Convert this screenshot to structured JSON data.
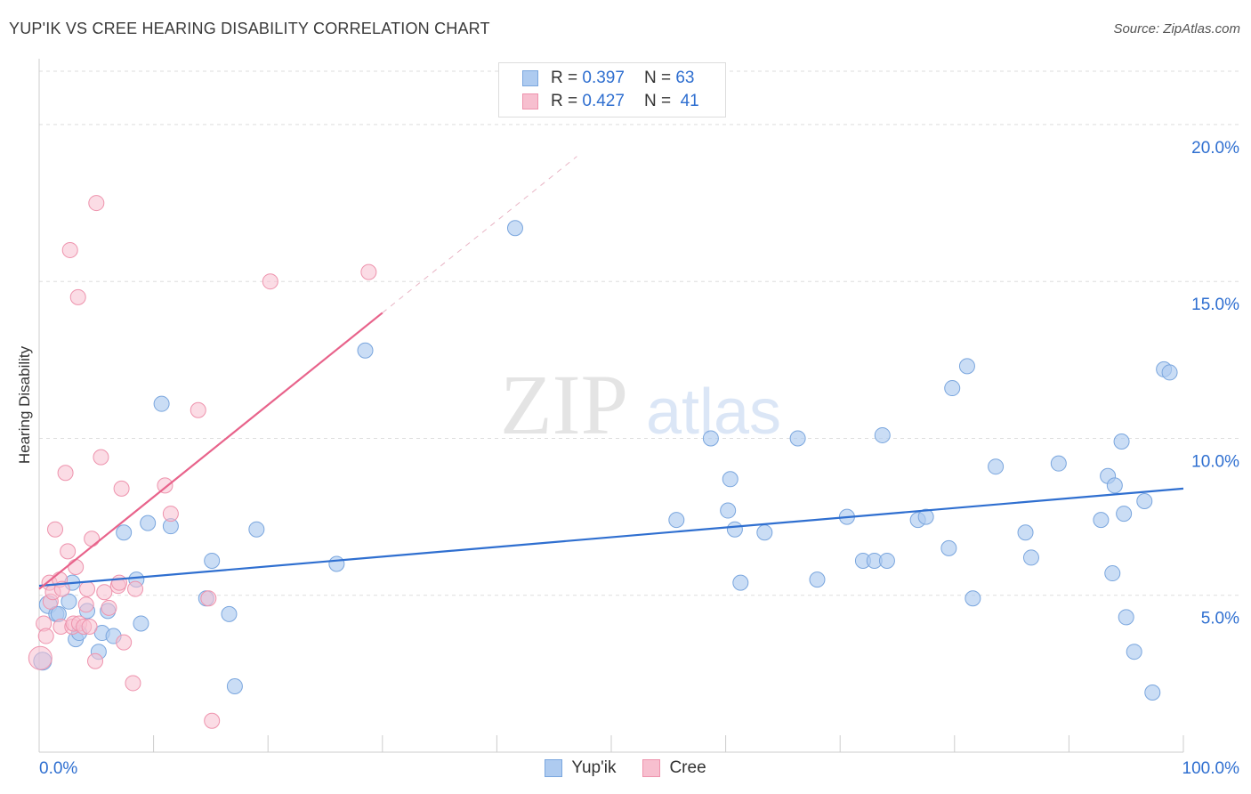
{
  "title": "YUP'IK VS CREE HEARING DISABILITY CORRELATION CHART",
  "source": "Source: ZipAtlas.com",
  "watermark": {
    "zip": "ZIP",
    "atlas": "atlas"
  },
  "legend": {
    "rows": [
      {
        "r_label": "R =",
        "r_value": "0.397",
        "n_label": "N =",
        "n_value": "63"
      },
      {
        "r_label": "R =",
        "r_value": "0.427",
        "n_label": "N =",
        "n_value": "41"
      }
    ]
  },
  "chart_data": {
    "type": "scatter",
    "title": "YUP'IK VS CREE HEARING DISABILITY CORRELATION CHART",
    "xlabel": "",
    "ylabel": "Hearing Disability",
    "xlim": [
      0,
      100
    ],
    "ylim": [
      0,
      20
    ],
    "x_tick_labels": [
      "0.0%",
      "100.0%"
    ],
    "y_ticks": [
      5,
      10,
      15,
      20
    ],
    "y_tick_labels": [
      "5.0%",
      "10.0%",
      "15.0%",
      "20.0%"
    ],
    "grid": true,
    "legend_position": "top-center",
    "colors": {
      "yupik_fill": "#aecbf0",
      "yupik_stroke": "#7aa6de",
      "yupik_line": "#2f6fd0",
      "cree_fill": "#f7bfcf",
      "cree_stroke": "#ee93ad",
      "cree_line": "#e8638b",
      "axis_text": "#2f6fd0"
    },
    "series": [
      {
        "name": "Yup'ik",
        "r": 0.397,
        "n": 63,
        "trend": [
          [
            0,
            5.3
          ],
          [
            100,
            8.4
          ]
        ],
        "points": [
          [
            0.3,
            2.9
          ],
          [
            0.8,
            4.7
          ],
          [
            1.5,
            4.4
          ],
          [
            1.7,
            4.4
          ],
          [
            2.6,
            4.8
          ],
          [
            2.9,
            5.4
          ],
          [
            3.2,
            3.6
          ],
          [
            3.5,
            3.8
          ],
          [
            4.2,
            4.5
          ],
          [
            5.2,
            3.2
          ],
          [
            5.5,
            3.8
          ],
          [
            6.0,
            4.5
          ],
          [
            6.5,
            3.7
          ],
          [
            7.4,
            7.0
          ],
          [
            8.5,
            5.5
          ],
          [
            8.9,
            4.1
          ],
          [
            9.5,
            7.3
          ],
          [
            10.7,
            11.1
          ],
          [
            11.5,
            7.2
          ],
          [
            14.6,
            4.9
          ],
          [
            15.1,
            6.1
          ],
          [
            16.6,
            4.4
          ],
          [
            17.1,
            2.1
          ],
          [
            19.0,
            7.1
          ],
          [
            26.0,
            6.0
          ],
          [
            28.5,
            12.8
          ],
          [
            41.6,
            16.7
          ],
          [
            55.7,
            7.4
          ],
          [
            58.7,
            10.0
          ],
          [
            60.2,
            7.7
          ],
          [
            60.4,
            8.7
          ],
          [
            60.8,
            7.1
          ],
          [
            61.3,
            5.4
          ],
          [
            63.4,
            7.0
          ],
          [
            66.3,
            10.0
          ],
          [
            68.0,
            5.5
          ],
          [
            70.6,
            7.5
          ],
          [
            72.0,
            6.1
          ],
          [
            73.0,
            6.1
          ],
          [
            73.7,
            10.1
          ],
          [
            74.1,
            6.1
          ],
          [
            76.8,
            7.4
          ],
          [
            77.5,
            7.5
          ],
          [
            79.5,
            6.5
          ],
          [
            79.8,
            11.6
          ],
          [
            81.1,
            12.3
          ],
          [
            81.6,
            4.9
          ],
          [
            83.6,
            9.1
          ],
          [
            86.2,
            7.0
          ],
          [
            86.7,
            6.2
          ],
          [
            89.1,
            9.2
          ],
          [
            92.8,
            7.4
          ],
          [
            93.4,
            8.8
          ],
          [
            93.8,
            5.7
          ],
          [
            94.0,
            8.5
          ],
          [
            94.6,
            9.9
          ],
          [
            94.8,
            7.6
          ],
          [
            95.0,
            4.3
          ],
          [
            95.7,
            3.2
          ],
          [
            96.6,
            8.0
          ],
          [
            97.3,
            1.9
          ],
          [
            98.3,
            12.2
          ],
          [
            98.8,
            12.1
          ]
        ]
      },
      {
        "name": "Cree",
        "r": 0.427,
        "n": 41,
        "trend": [
          [
            0,
            5.2
          ],
          [
            30,
            14.0
          ]
        ],
        "points": [
          [
            0.1,
            3.0
          ],
          [
            0.4,
            4.1
          ],
          [
            0.6,
            3.7
          ],
          [
            0.9,
            5.4
          ],
          [
            1.0,
            4.8
          ],
          [
            1.2,
            5.1
          ],
          [
            1.4,
            7.1
          ],
          [
            1.8,
            5.5
          ],
          [
            1.9,
            4.0
          ],
          [
            2.0,
            5.2
          ],
          [
            2.3,
            8.9
          ],
          [
            2.5,
            6.4
          ],
          [
            2.7,
            16.0
          ],
          [
            2.9,
            4.0
          ],
          [
            3.0,
            4.1
          ],
          [
            3.2,
            5.9
          ],
          [
            3.4,
            14.5
          ],
          [
            3.5,
            4.1
          ],
          [
            3.9,
            4.0
          ],
          [
            4.1,
            4.7
          ],
          [
            4.2,
            5.2
          ],
          [
            4.4,
            4.0
          ],
          [
            4.6,
            6.8
          ],
          [
            4.9,
            2.9
          ],
          [
            5.0,
            17.5
          ],
          [
            5.4,
            9.4
          ],
          [
            5.7,
            5.1
          ],
          [
            6.1,
            4.6
          ],
          [
            6.9,
            5.3
          ],
          [
            7.0,
            5.4
          ],
          [
            7.2,
            8.4
          ],
          [
            7.4,
            3.5
          ],
          [
            8.2,
            2.2
          ],
          [
            8.4,
            5.2
          ],
          [
            11.5,
            7.6
          ],
          [
            11.0,
            8.5
          ],
          [
            13.9,
            10.9
          ],
          [
            14.8,
            4.9
          ],
          [
            15.1,
            1.0
          ],
          [
            20.2,
            15.0
          ],
          [
            28.8,
            15.3
          ]
        ]
      }
    ]
  },
  "bottom_legend": [
    {
      "label": "Yup'ik"
    },
    {
      "label": "Cree"
    }
  ]
}
